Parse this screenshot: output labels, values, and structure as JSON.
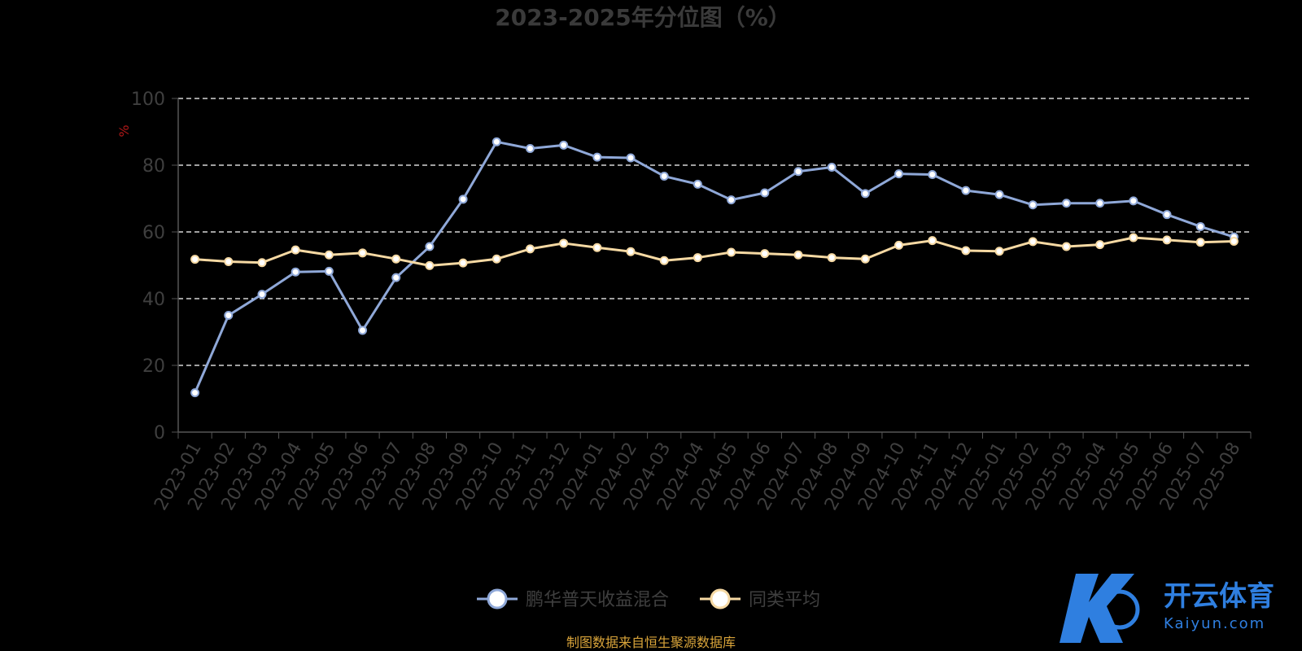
{
  "chart_data": {
    "type": "line",
    "title": "2023-2025年分位图（%）",
    "ylabel": "%",
    "xlabel": "",
    "ylim": [
      0,
      100
    ],
    "yticks": [
      0,
      20,
      40,
      60,
      80,
      100
    ],
    "grid": true,
    "legend_position": "bottom-center",
    "categories": [
      "2023-01",
      "2023-02",
      "2023-03",
      "2023-04",
      "2023-05",
      "2023-06",
      "2023-07",
      "2023-08",
      "2023-09",
      "2023-10",
      "2023-11",
      "2023-12",
      "2024-01",
      "2024-02",
      "2024-03",
      "2024-04",
      "2024-05",
      "2024-06",
      "2024-07",
      "2024-08",
      "2024-09",
      "2024-10",
      "2024-11",
      "2024-12",
      "2025-01",
      "2025-02",
      "2025-03",
      "2025-04",
      "2025-05",
      "2025-06",
      "2025-07",
      "2025-08"
    ],
    "series": [
      {
        "name": "鹏华普天收益混合",
        "color": "#8fa8d8",
        "values": [
          11.8,
          35,
          41.3,
          48,
          48.2,
          30.5,
          46.3,
          55.6,
          69.8,
          87,
          85,
          86,
          82.4,
          82.2,
          76.7,
          74.3,
          69.6,
          71.7,
          78.1,
          79.4,
          71.5,
          77.4,
          77.2,
          72.4,
          71.2,
          68.1,
          68.6,
          68.6,
          69.3,
          65.2,
          61.6,
          58.5
        ]
      },
      {
        "name": "同类平均",
        "color": "#f6d9a3",
        "values": [
          51.8,
          51.1,
          50.8,
          54.6,
          53.1,
          53.7,
          51.9,
          49.9,
          50.7,
          51.9,
          54.9,
          56.6,
          55.3,
          54.1,
          51.4,
          52.3,
          53.9,
          53.5,
          53.1,
          52.3,
          51.9,
          56,
          57.4,
          54.4,
          54.2,
          57.1,
          55.6,
          56.2,
          58.3,
          57.6,
          56.9,
          57.2
        ]
      }
    ]
  },
  "source": "制图数据来自恒生聚源数据库",
  "watermark": {
    "main": "开云体育",
    "sub": "Kaiyun.com"
  },
  "colors": {
    "background": "#000000",
    "axis": "#555555",
    "grid": "#ffffff"
  }
}
